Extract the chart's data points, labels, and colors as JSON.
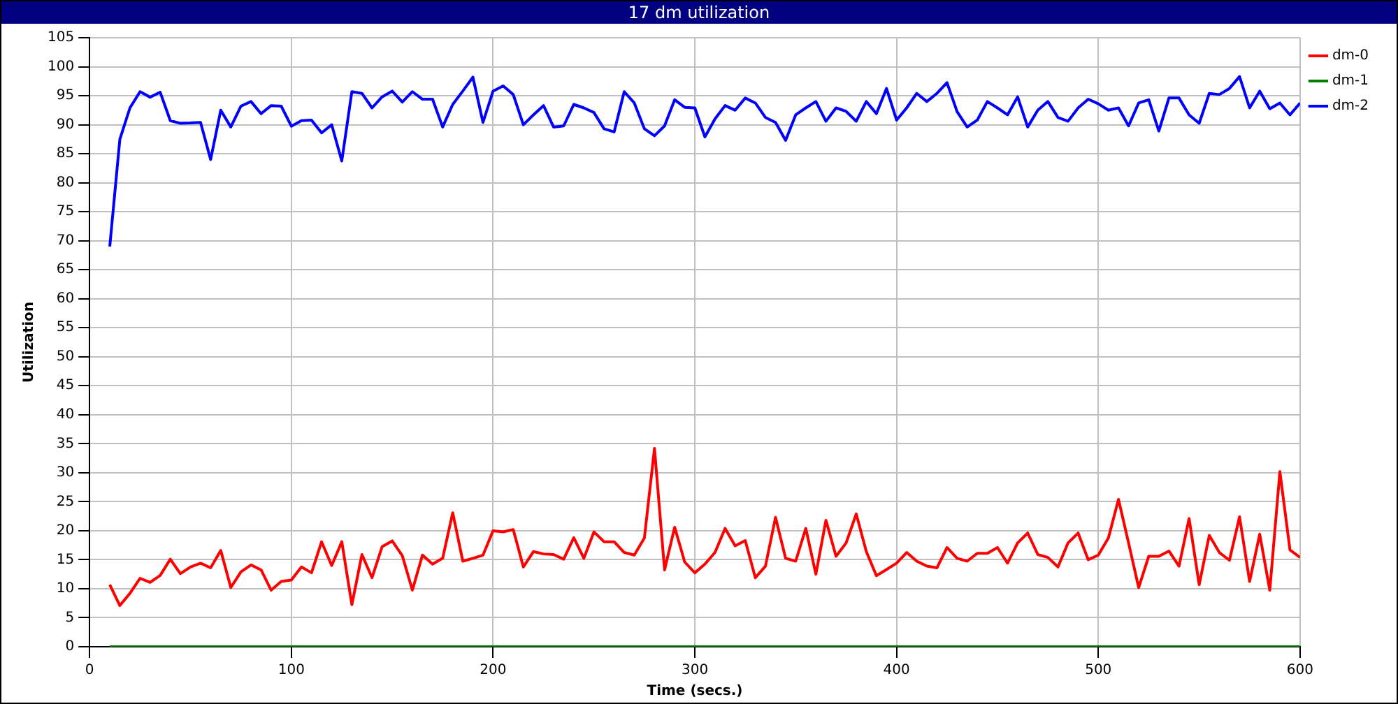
{
  "chart_data": {
    "type": "line",
    "title": "17 dm utilization",
    "xlabel": "Time (secs.)",
    "ylabel": "Utilization",
    "x": [
      10,
      15,
      20,
      25,
      30,
      35,
      40,
      45,
      50,
      55,
      60,
      65,
      70,
      75,
      80,
      85,
      90,
      95,
      100,
      105,
      110,
      115,
      120,
      125,
      130,
      135,
      140,
      145,
      150,
      155,
      160,
      165,
      170,
      175,
      180,
      185,
      190,
      195,
      200,
      205,
      210,
      215,
      220,
      225,
      230,
      235,
      240,
      245,
      250,
      255,
      260,
      265,
      270,
      275,
      280,
      285,
      290,
      295,
      300,
      305,
      310,
      315,
      320,
      325,
      330,
      335,
      340,
      345,
      350,
      355,
      360,
      365,
      370,
      375,
      380,
      385,
      390,
      395,
      400,
      405,
      410,
      415,
      420,
      425,
      430,
      435,
      440,
      445,
      450,
      455,
      460,
      465,
      470,
      475,
      480,
      485,
      490,
      495,
      500,
      505,
      510,
      515,
      520,
      525,
      530,
      535,
      540,
      545,
      550,
      555,
      560,
      565,
      570,
      575,
      580,
      585,
      590,
      595,
      600
    ],
    "series": [
      {
        "name": "dm-0",
        "color": "#ff0000",
        "values": [
          10.7,
          7.1,
          9.2,
          11.8,
          11.1,
          12.3,
          15.1,
          12.6,
          13.75,
          14.4,
          13.6,
          16.6,
          10.2,
          12.9,
          14.1,
          13.25,
          9.75,
          11.25,
          11.5,
          13.75,
          12.75,
          18.1,
          14,
          18.1,
          7.25,
          15.9,
          11.9,
          17.25,
          18.25,
          15.7,
          9.75,
          15.8,
          14.25,
          15.25,
          23.1,
          14.75,
          15.25,
          15.8,
          20,
          19.8,
          20.2,
          13.75,
          16.4,
          16,
          15.9,
          15.1,
          18.8,
          15.25,
          19.8,
          18.1,
          18.1,
          16.25,
          15.8,
          18.75,
          34.2,
          13.25,
          20.6,
          14.6,
          12.75,
          14.25,
          16.25,
          20.4,
          17.4,
          18.3,
          11.9,
          13.9,
          22.3,
          15.25,
          14.75,
          20.4,
          12.5,
          21.8,
          15.6,
          17.9,
          22.9,
          16.4,
          12.25,
          13.3,
          14.4,
          16.25,
          14.75,
          13.9,
          13.6,
          17.1,
          15.25,
          14.75,
          16.1,
          16.1,
          17.1,
          14.4,
          17.9,
          19.6,
          15.9,
          15.4,
          13.75,
          17.9,
          19.6,
          15,
          15.8,
          18.75,
          25.4,
          17.9,
          10.2,
          15.6,
          15.6,
          16.5,
          13.9,
          22.1,
          10.7,
          19.2,
          16.25,
          14.9,
          22.4,
          11.25,
          19.4,
          9.75,
          30.2,
          16.7,
          15.4
        ]
      },
      {
        "name": "dm-1",
        "color": "#008000",
        "values": [
          0,
          0,
          0,
          0,
          0,
          0,
          0,
          0,
          0,
          0,
          0,
          0,
          0,
          0,
          0,
          0,
          0,
          0,
          0,
          0,
          0,
          0,
          0,
          0,
          0,
          0,
          0,
          0,
          0,
          0,
          0,
          0,
          0,
          0,
          0,
          0,
          0,
          0,
          0,
          0,
          0,
          0,
          0,
          0,
          0,
          0,
          0,
          0,
          0,
          0,
          0,
          0,
          0,
          0,
          0,
          0,
          0,
          0,
          0,
          0,
          0,
          0,
          0,
          0,
          0,
          0,
          0,
          0,
          0,
          0,
          0,
          0,
          0,
          0,
          0,
          0,
          0,
          0,
          0,
          0,
          0,
          0,
          0,
          0,
          0,
          0,
          0,
          0,
          0,
          0,
          0,
          0,
          0,
          0,
          0,
          0,
          0,
          0,
          0,
          0,
          0,
          0,
          0,
          0,
          0,
          0,
          0,
          0,
          0,
          0,
          0,
          0,
          0,
          0,
          0,
          0,
          0,
          0,
          0
        ]
      },
      {
        "name": "dm-2",
        "color": "#0000ff",
        "values": [
          69,
          87.5,
          92.9,
          95.7,
          94.75,
          95.6,
          90.7,
          90.25,
          90.3,
          90.4,
          84,
          92.5,
          89.6,
          93.2,
          94,
          91.9,
          93.3,
          93.2,
          89.75,
          90.7,
          90.8,
          88.6,
          90,
          83.75,
          95.7,
          95.4,
          92.9,
          94.8,
          95.8,
          93.9,
          95.7,
          94.4,
          94.4,
          89.6,
          93.5,
          95.8,
          98.2,
          90.4,
          95.8,
          96.7,
          95.2,
          90,
          91.7,
          93.3,
          89.6,
          89.8,
          93.5,
          92.9,
          92.1,
          89.3,
          88.75,
          95.7,
          93.75,
          89.3,
          88.1,
          89.8,
          94.3,
          93,
          92.9,
          87.9,
          91,
          93.3,
          92.5,
          94.6,
          93.75,
          91.25,
          90.4,
          87.3,
          91.7,
          92.9,
          94,
          90.6,
          92.9,
          92.3,
          90.6,
          94,
          91.9,
          96.25,
          90.8,
          92.9,
          95.4,
          94,
          95.4,
          97.25,
          92.25,
          89.6,
          90.8,
          94,
          92.9,
          91.7,
          94.8,
          89.6,
          92.5,
          94,
          91.25,
          90.6,
          92.9,
          94.4,
          93.6,
          92.5,
          92.9,
          89.8,
          93.75,
          94.3,
          88.9,
          94.6,
          94.6,
          91.7,
          90.25,
          95.4,
          95.2,
          96.25,
          98.3,
          92.9,
          95.8,
          92.75,
          93.75,
          91.7,
          93.75
        ]
      }
    ],
    "xlim": [
      0,
      600
    ],
    "xticks": [
      0,
      100,
      200,
      300,
      400,
      500,
      600
    ],
    "ylim": [
      0,
      105
    ],
    "yticks": [
      0,
      5,
      10,
      15,
      20,
      25,
      30,
      35,
      40,
      45,
      50,
      55,
      60,
      65,
      70,
      75,
      80,
      85,
      90,
      95,
      100,
      105
    ],
    "grid": true,
    "legend": "right",
    "marker": "none",
    "line_style": "solid"
  }
}
